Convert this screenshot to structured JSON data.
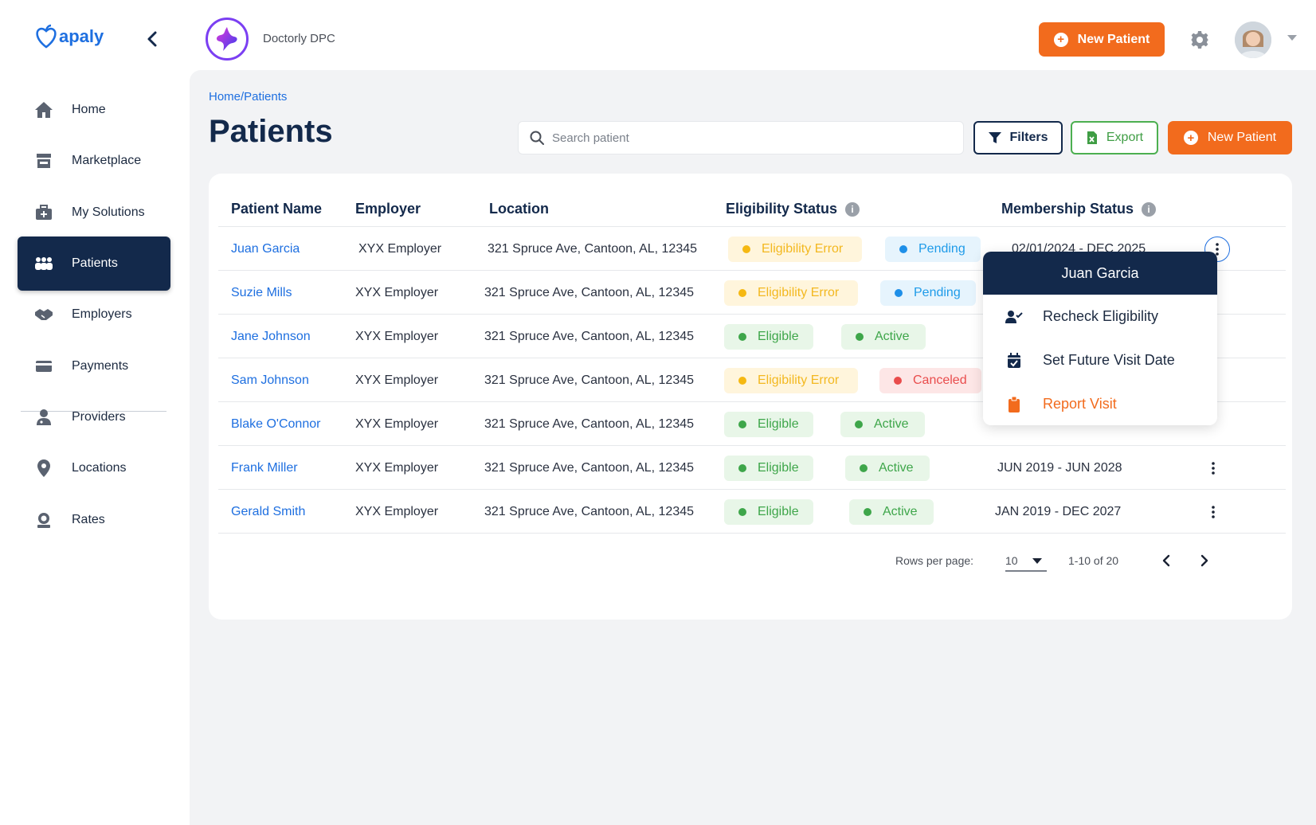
{
  "sidebar": {
    "logo": "apaly",
    "items": [
      {
        "label": "Home",
        "icon": "home-icon"
      },
      {
        "label": "Marketplace",
        "icon": "store-icon"
      },
      {
        "label": "My Solutions",
        "icon": "briefcase-icon"
      },
      {
        "label": "Patients",
        "icon": "people-icon",
        "active": true
      },
      {
        "label": "Employers",
        "icon": "handshake-icon"
      },
      {
        "label": "Payments",
        "icon": "card-icon"
      },
      {
        "label": "Providers",
        "icon": "doctor-icon"
      },
      {
        "label": "Locations",
        "icon": "pin-icon"
      },
      {
        "label": "Rates",
        "icon": "rates-icon"
      }
    ]
  },
  "topbar": {
    "brand_name": "Doctorly DPC",
    "new_patient_label": "New Patient"
  },
  "main": {
    "breadcrumb": "Home/Patients",
    "title": "Patients",
    "search_placeholder": "Search patient",
    "filters_label": "Filters",
    "export_label": "Export",
    "new_patient_label": "New Patient"
  },
  "table": {
    "headers": {
      "name": "Patient Name",
      "employer": "Employer",
      "location": "Location",
      "eligibility": "Eligibility Status",
      "membership": "Membership Status"
    },
    "rows": [
      {
        "name": "Juan Garcia",
        "employer": "XYX Employer",
        "location": "321 Spruce Ave, Cantoon, AL, 12345",
        "eligibility": "Eligibility Error",
        "membership": "Pending",
        "dates": "02/01/2024 - DEC 2025"
      },
      {
        "name": "Suzie Mills",
        "employer": "XYX Employer",
        "location": "321 Spruce Ave, Cantoon, AL, 12345",
        "eligibility": "Eligibility Error",
        "membership": "Pending",
        "dates": ""
      },
      {
        "name": "Jane Johnson",
        "employer": "XYX Employer",
        "location": "321 Spruce Ave, Cantoon, AL, 12345",
        "eligibility": "Eligible",
        "membership": "Active",
        "dates": ""
      },
      {
        "name": "Sam Johnson",
        "employer": "XYX Employer",
        "location": "321 Spruce Ave, Cantoon, AL, 12345",
        "eligibility": "Eligibility Error",
        "membership": "Canceled",
        "dates": ""
      },
      {
        "name": "Blake O'Connor",
        "employer": "XYX Employer",
        "location": "321 Spruce Ave, Cantoon, AL, 12345",
        "eligibility": "Eligible",
        "membership": "Active",
        "dates": ""
      },
      {
        "name": "Frank Miller",
        "employer": "XYX Employer",
        "location": "321 Spruce Ave, Cantoon, AL, 12345",
        "eligibility": "Eligible",
        "membership": "Active",
        "dates": "JUN 2019 - JUN 2028"
      },
      {
        "name": "Gerald Smith",
        "employer": "XYX Employer",
        "location": "321 Spruce Ave, Cantoon, AL, 12345",
        "eligibility": "Eligible",
        "membership": "Active",
        "dates": "JAN 2019 - DEC 2027"
      }
    ]
  },
  "pagination": {
    "rows_per_page_label": "Rows per page:",
    "rows_per_page_value": "10",
    "range": "1-10 of 20"
  },
  "context_menu": {
    "title": "Juan Garcia",
    "items": [
      {
        "label": "Recheck Eligibility",
        "icon": "user-check-icon"
      },
      {
        "label": "Set Future Visit Date",
        "icon": "calendar-check-icon"
      },
      {
        "label": "Report Visit",
        "icon": "clipboard-icon"
      }
    ]
  },
  "colors": {
    "navy": "#13294b",
    "orange": "#f26b1d",
    "blue_link": "#1e6fe0",
    "green": "#3ea64a",
    "amber": "#f5b812",
    "red": "#e94c4c"
  }
}
